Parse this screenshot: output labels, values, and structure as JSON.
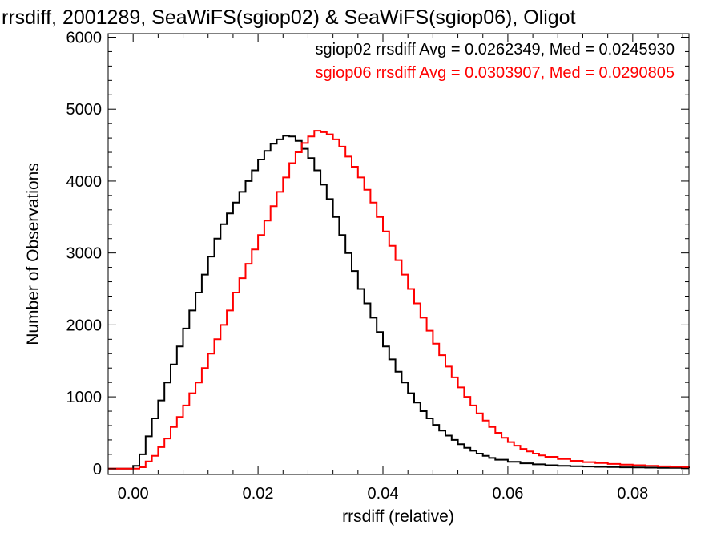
{
  "chart_data": {
    "type": "histogram",
    "title": "rrsdiff, 2001289, SeaWiFS(sgiop02) & SeaWiFS(sgiop06), Oligot",
    "xlabel": "rrsdiff (relative)",
    "ylabel": "Number of Observations",
    "xlim": [
      -0.004,
      0.089
    ],
    "ylim": [
      -80,
      6050
    ],
    "x_ticks": [
      0.0,
      0.02,
      0.04,
      0.06,
      0.08
    ],
    "x_tick_labels": [
      "0.00",
      "0.02",
      "0.04",
      "0.06",
      "0.08"
    ],
    "y_ticks": [
      0,
      1000,
      2000,
      3000,
      4000,
      5000,
      6000
    ],
    "y_tick_labels": [
      "0",
      "1000",
      "2000",
      "3000",
      "4000",
      "5000",
      "6000"
    ],
    "grid": false,
    "series": [
      {
        "name": "sgiop02",
        "color": "#000000",
        "stats_text": "sgiop02 rrsdiff Avg = 0.0262349, Med = 0.0245930",
        "points": [
          [
            -0.004,
            0
          ],
          [
            -0.0005,
            0
          ],
          [
            0.0,
            40
          ],
          [
            0.001,
            200
          ],
          [
            0.002,
            450
          ],
          [
            0.003,
            700
          ],
          [
            0.004,
            950
          ],
          [
            0.005,
            1200
          ],
          [
            0.006,
            1450
          ],
          [
            0.007,
            1700
          ],
          [
            0.008,
            1950
          ],
          [
            0.009,
            2200
          ],
          [
            0.01,
            2450
          ],
          [
            0.011,
            2700
          ],
          [
            0.012,
            2950
          ],
          [
            0.013,
            3200
          ],
          [
            0.014,
            3400
          ],
          [
            0.015,
            3550
          ],
          [
            0.016,
            3700
          ],
          [
            0.017,
            3850
          ],
          [
            0.018,
            4000
          ],
          [
            0.019,
            4150
          ],
          [
            0.02,
            4300
          ],
          [
            0.021,
            4420
          ],
          [
            0.022,
            4520
          ],
          [
            0.023,
            4580
          ],
          [
            0.024,
            4630
          ],
          [
            0.025,
            4620
          ],
          [
            0.026,
            4560
          ],
          [
            0.027,
            4450
          ],
          [
            0.028,
            4320
          ],
          [
            0.029,
            4150
          ],
          [
            0.03,
            3950
          ],
          [
            0.031,
            3750
          ],
          [
            0.032,
            3500
          ],
          [
            0.033,
            3250
          ],
          [
            0.034,
            3000
          ],
          [
            0.035,
            2750
          ],
          [
            0.036,
            2500
          ],
          [
            0.037,
            2300
          ],
          [
            0.038,
            2100
          ],
          [
            0.039,
            1900
          ],
          [
            0.04,
            1700
          ],
          [
            0.041,
            1520
          ],
          [
            0.042,
            1350
          ],
          [
            0.043,
            1200
          ],
          [
            0.044,
            1050
          ],
          [
            0.045,
            920
          ],
          [
            0.046,
            800
          ],
          [
            0.047,
            700
          ],
          [
            0.048,
            610
          ],
          [
            0.049,
            530
          ],
          [
            0.05,
            460
          ],
          [
            0.051,
            400
          ],
          [
            0.052,
            340
          ],
          [
            0.053,
            290
          ],
          [
            0.054,
            250
          ],
          [
            0.055,
            210
          ],
          [
            0.056,
            180
          ],
          [
            0.057,
            150
          ],
          [
            0.058,
            125
          ],
          [
            0.06,
            95
          ],
          [
            0.062,
            75
          ],
          [
            0.064,
            60
          ],
          [
            0.066,
            48
          ],
          [
            0.068,
            40
          ],
          [
            0.07,
            34
          ],
          [
            0.072,
            30
          ],
          [
            0.074,
            26
          ],
          [
            0.076,
            22
          ],
          [
            0.078,
            19
          ],
          [
            0.08,
            17
          ],
          [
            0.082,
            15
          ],
          [
            0.084,
            13
          ],
          [
            0.086,
            11
          ],
          [
            0.088,
            9
          ],
          [
            0.089,
            8
          ]
        ]
      },
      {
        "name": "sgiop06",
        "color": "#ff0000",
        "stats_text": "sgiop06 rrsdiff Avg = 0.0303907, Med = 0.0290805",
        "points": [
          [
            -0.004,
            0
          ],
          [
            0.0005,
            0
          ],
          [
            0.001,
            20
          ],
          [
            0.002,
            100
          ],
          [
            0.003,
            180
          ],
          [
            0.004,
            300
          ],
          [
            0.005,
            420
          ],
          [
            0.006,
            580
          ],
          [
            0.007,
            720
          ],
          [
            0.008,
            880
          ],
          [
            0.009,
            1050
          ],
          [
            0.01,
            1200
          ],
          [
            0.011,
            1400
          ],
          [
            0.012,
            1600
          ],
          [
            0.013,
            1800
          ],
          [
            0.014,
            2000
          ],
          [
            0.015,
            2200
          ],
          [
            0.016,
            2450
          ],
          [
            0.017,
            2650
          ],
          [
            0.018,
            2850
          ],
          [
            0.019,
            3050
          ],
          [
            0.02,
            3250
          ],
          [
            0.021,
            3450
          ],
          [
            0.022,
            3650
          ],
          [
            0.023,
            3850
          ],
          [
            0.024,
            4050
          ],
          [
            0.025,
            4250
          ],
          [
            0.026,
            4400
          ],
          [
            0.027,
            4530
          ],
          [
            0.028,
            4620
          ],
          [
            0.029,
            4700
          ],
          [
            0.03,
            4680
          ],
          [
            0.031,
            4650
          ],
          [
            0.032,
            4580
          ],
          [
            0.033,
            4480
          ],
          [
            0.034,
            4340
          ],
          [
            0.035,
            4200
          ],
          [
            0.036,
            4050
          ],
          [
            0.037,
            3880
          ],
          [
            0.038,
            3700
          ],
          [
            0.039,
            3500
          ],
          [
            0.04,
            3300
          ],
          [
            0.041,
            3100
          ],
          [
            0.042,
            2900
          ],
          [
            0.043,
            2700
          ],
          [
            0.044,
            2500
          ],
          [
            0.045,
            2300
          ],
          [
            0.046,
            2100
          ],
          [
            0.047,
            1920
          ],
          [
            0.048,
            1740
          ],
          [
            0.049,
            1580
          ],
          [
            0.05,
            1420
          ],
          [
            0.051,
            1270
          ],
          [
            0.052,
            1130
          ],
          [
            0.053,
            1000
          ],
          [
            0.054,
            880
          ],
          [
            0.055,
            770
          ],
          [
            0.056,
            670
          ],
          [
            0.057,
            580
          ],
          [
            0.058,
            500
          ],
          [
            0.059,
            430
          ],
          [
            0.06,
            370
          ],
          [
            0.061,
            320
          ],
          [
            0.062,
            275
          ],
          [
            0.063,
            240
          ],
          [
            0.064,
            210
          ],
          [
            0.065,
            185
          ],
          [
            0.066,
            165
          ],
          [
            0.068,
            135
          ],
          [
            0.07,
            110
          ],
          [
            0.072,
            92
          ],
          [
            0.074,
            78
          ],
          [
            0.076,
            66
          ],
          [
            0.078,
            56
          ],
          [
            0.08,
            48
          ],
          [
            0.082,
            40
          ],
          [
            0.084,
            33
          ],
          [
            0.086,
            27
          ],
          [
            0.088,
            22
          ],
          [
            0.089,
            20
          ]
        ]
      }
    ]
  }
}
